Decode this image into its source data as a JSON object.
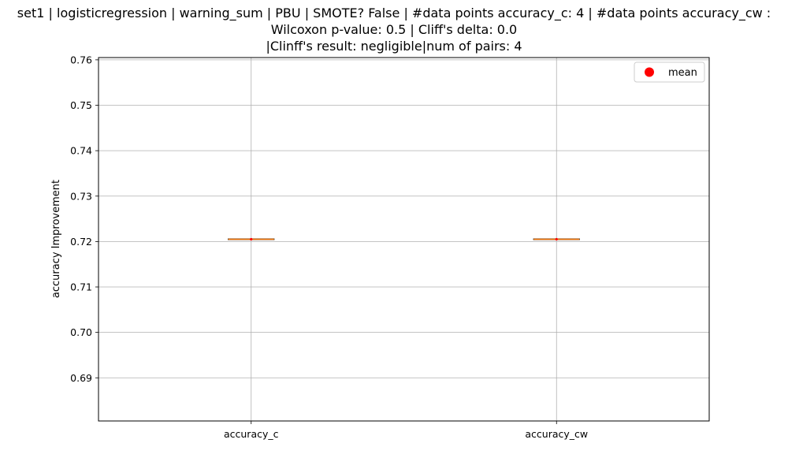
{
  "chart_data": {
    "type": "box",
    "title_lines": [
      "set1 | logisticregression | warning_sum | PBU | SMOTE? False | #data points accuracy_c: 4 | #data points accuracy_cw :",
      "Wilcoxon p-value: 0.5 | Cliff's delta: 0.0",
      "|Clinff's result: negligible|num of pairs: 4"
    ],
    "xlabel": "",
    "ylabel": "accuracy Improvement",
    "categories": [
      "accuracy_c",
      "accuracy_cw"
    ],
    "ylim": [
      0.6805,
      0.7605
    ],
    "yticks": [
      0.69,
      0.7,
      0.71,
      0.72,
      0.73,
      0.74,
      0.75,
      0.76
    ],
    "ytick_labels": [
      "0.69",
      "0.70",
      "0.71",
      "0.72",
      "0.73",
      "0.74",
      "0.75",
      "0.76"
    ],
    "series": [
      {
        "category": "accuracy_c",
        "median": 0.7205,
        "q1": 0.7205,
        "q3": 0.7205,
        "whisker_low": 0.7205,
        "whisker_high": 0.7205,
        "mean": 0.7205
      },
      {
        "category": "accuracy_cw",
        "median": 0.7205,
        "q1": 0.7205,
        "q3": 0.7205,
        "whisker_low": 0.7205,
        "whisker_high": 0.7205,
        "mean": 0.7205
      }
    ],
    "legend": {
      "label": "mean",
      "placement": "top-right"
    },
    "grid": true,
    "colors": {
      "mean_marker": "#ff0000",
      "median": "#ff7f0e",
      "grid": "#b0b0b0",
      "axes": "#000000"
    }
  }
}
